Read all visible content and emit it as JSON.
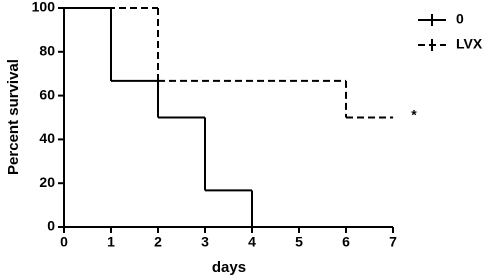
{
  "chart_data": {
    "type": "step",
    "x_label": "days",
    "y_label": "Percent survival",
    "xlim": [
      0,
      7
    ],
    "xticks": [
      0,
      1,
      2,
      3,
      4,
      5,
      6,
      7
    ],
    "ylim": [
      0,
      100
    ],
    "yticks": [
      0,
      20,
      40,
      60,
      80,
      100
    ],
    "legend": "top-right",
    "series": [
      {
        "name": "0",
        "color": "#000000",
        "dashed": false,
        "x": [
          0,
          1,
          2,
          3,
          4
        ],
        "values": [
          100,
          66.7,
          50,
          16.7,
          0
        ]
      },
      {
        "name": "LVX",
        "color": "#000000",
        "dashed": true,
        "x": [
          0,
          2,
          6,
          7
        ],
        "values": [
          100,
          66.7,
          50,
          50
        ]
      }
    ],
    "annotation": "*"
  }
}
